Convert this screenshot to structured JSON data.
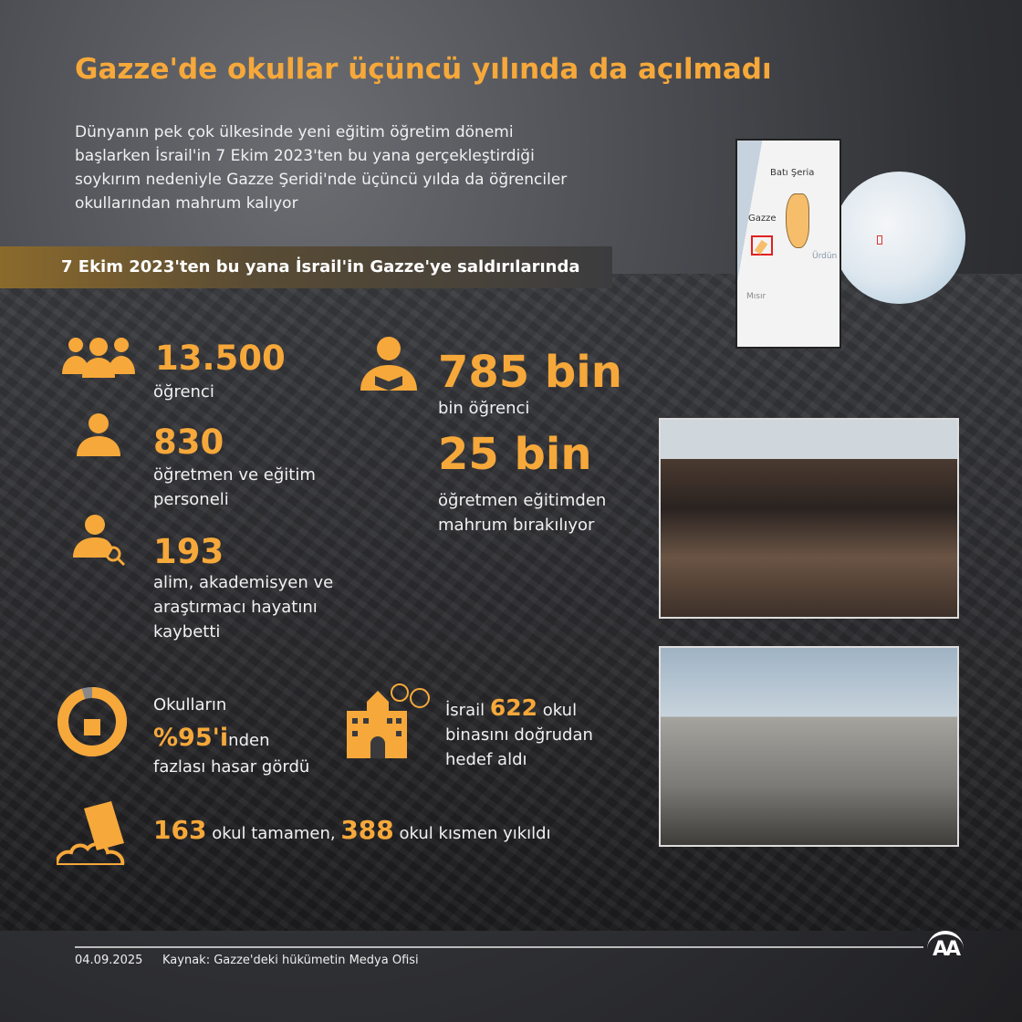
{
  "title": "Gazze'de okullar üçüncü yılında da açılmadı",
  "intro": "Dünyanın pek çok ülkesinde yeni eğitim öğretim dönemi başlarken İsrail'in 7 Ekim 2023'ten bu yana gerçekleştirdiği soykırım nedeniyle Gazze Şeridi'nde üçüncü yılda da öğrenciler okullarından mahrum kalıyor",
  "banner": "7 Ekim 2023'ten bu yana İsrail'in Gazze'ye saldırılarında",
  "map": {
    "labels": {
      "west_bank": "Batı Şeria",
      "gaza": "Gazze",
      "jordan": "Ürdün",
      "egypt": "Mısır"
    }
  },
  "stats": {
    "students_killed": {
      "value": "13.500",
      "label": "öğrenci",
      "icon": "people-group-icon"
    },
    "teachers_killed": {
      "value": "830",
      "label": "öğretmen ve eğitim personeli",
      "icon": "person-tie-icon"
    },
    "scholars_killed": {
      "value": "193",
      "label": "alim, akademisyen ve araştırmacı hayatını kaybetti",
      "icon": "researcher-magnifier-icon"
    },
    "students_deprived": {
      "value": "785 bin",
      "label": "bin öğrenci",
      "icon": "student-reading-icon"
    },
    "teachers_deprived": {
      "value": "25 bin",
      "label": "öğretmen eğitimden mahrum bırakılıyor"
    },
    "damaged": {
      "pre": "Okulların",
      "value": "%95'i",
      "suffix": "nden",
      "post": "fazlası hasar gördü",
      "percent": 95,
      "icon": "damaged-school-donut-icon"
    },
    "targeted": {
      "pre": "İsrail",
      "value": "622",
      "mid": "okul",
      "post": "binasını doğrudan hedef aldı",
      "icon": "bombed-school-icon"
    },
    "destroyed": {
      "value1": "163",
      "text1": "okul tamamen,",
      "value2": "388",
      "text2": "okul kısmen yıkıldı",
      "icon": "collapsed-building-icon"
    }
  },
  "footer": {
    "date": "04.09.2025",
    "source": "Kaynak: Gazze'deki hükümetin Medya Ofisi",
    "logo": "AA"
  },
  "colors": {
    "accent": "#f6a83a",
    "background": "#2f3034"
  }
}
